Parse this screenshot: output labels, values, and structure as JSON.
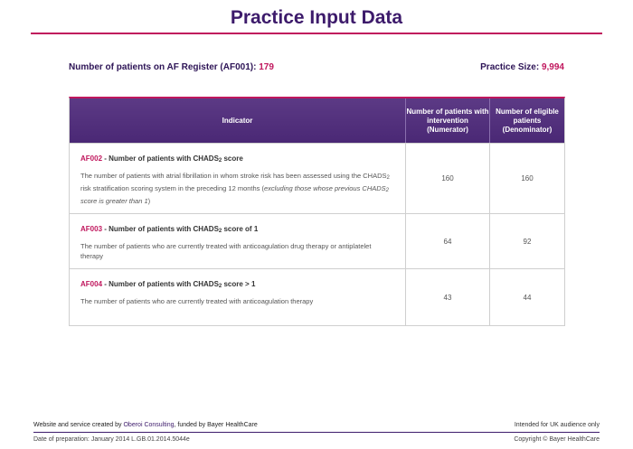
{
  "page": {
    "title": "Practice Input Data"
  },
  "summary": {
    "register_label": "Number of patients on AF Register (AF001):",
    "register_value": "179",
    "practice_label": "Practice Size:",
    "practice_value": "9,994"
  },
  "table": {
    "headers": {
      "indicator": "Indicator",
      "numerator": "Number of patients with intervention (Numerator)",
      "denominator": "Number of eligible patients (Denominator)"
    },
    "rows": [
      {
        "code": "AF002",
        "title": " - Number of patients with CHADS",
        "title_sub": "2",
        "title_tail": " score",
        "desc_a": "The number of patients with atrial fibrillation in whom stroke risk has been assessed using the CHADS",
        "desc_sub": "2",
        "desc_b": " risk stratification scoring system in the preceding 12 months (",
        "desc_italic_a": "excluding those whose previous CHADS",
        "desc_italic_sub": "2",
        "desc_italic_b": " score is greater than 1",
        "desc_c": ")",
        "numerator": "160",
        "denominator": "160"
      },
      {
        "code": "AF003",
        "title": " - Number of patients with CHADS",
        "title_sub": "2",
        "title_tail": " score of 1",
        "desc": "The number of patients who are currently treated with anticoagulation drug therapy or antiplatelet therapy",
        "numerator": "64",
        "denominator": "92"
      },
      {
        "code": "AF004",
        "title": " - Number of patients with CHADS",
        "title_sub": "2",
        "title_tail": " score > 1",
        "desc": "The number of patients who are currently treated with anticoagulation therapy",
        "numerator": "43",
        "denominator": "44"
      }
    ]
  },
  "footer": {
    "credit_a": "Website and service created by ",
    "credit_link": "Oberoi Consulting",
    "credit_b": ", funded by Bayer HealthCare",
    "audience": "Intended for UK audience only",
    "date": "Date of preparation: January 2014   L.GB.01.2014.5044e",
    "copyright": "Copyright © Bayer HealthCare"
  },
  "colors": {
    "primary": "#3d1b6b",
    "accent": "#c0175d",
    "header_bg": "#4a2875"
  }
}
